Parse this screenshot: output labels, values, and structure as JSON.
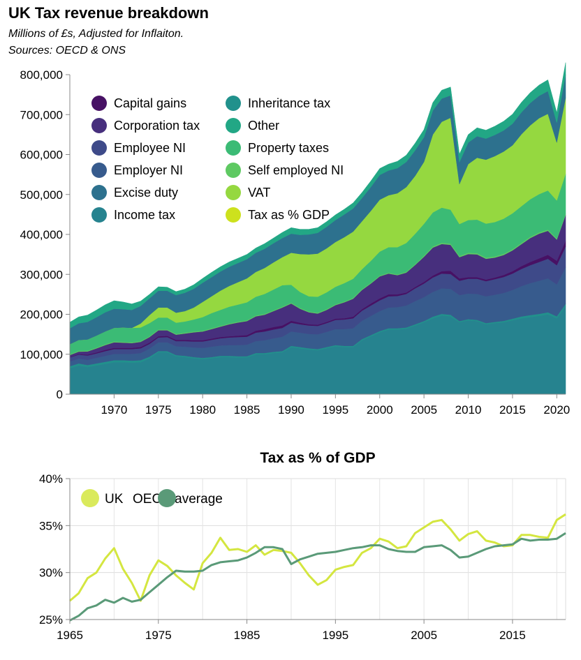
{
  "header": {
    "title": "UK Tax revenue breakdown",
    "subtitle_1": "Millions of £s, Adjusted for Inflaiton.",
    "subtitle_2": "Sources: OECD & ONS"
  },
  "chart_data": [
    {
      "type": "area",
      "stacked": true,
      "title": "UK Tax revenue breakdown",
      "ylim": [
        0,
        800000
      ],
      "xlim": [
        1965,
        2021
      ],
      "y_ticks": [
        "0",
        "100,000",
        "200,000",
        "300,000",
        "400,000",
        "500,000",
        "600,000",
        "700,000",
        "800,000"
      ],
      "y_tick_values": [
        0,
        100000,
        200000,
        300000,
        400000,
        500000,
        600000,
        700000,
        800000
      ],
      "x_ticks": [
        "1970",
        "1975",
        "1980",
        "1985",
        "1990",
        "1995",
        "2000",
        "2005",
        "2010",
        "2015",
        "2020"
      ],
      "x_tick_values": [
        1970,
        1975,
        1980,
        1985,
        1990,
        1995,
        2000,
        2005,
        2010,
        2015,
        2020
      ],
      "grid": false,
      "legend_position": "top-left",
      "legend": [
        "Capital gains",
        "Corporation tax",
        "Employee NI",
        "Employer NI",
        "Excise duty",
        "Income tax",
        "Inheritance tax",
        "Other",
        "Property taxes",
        "Self employed NI",
        "VAT",
        "Tax as % GDP"
      ],
      "legend_colors": [
        "#471164",
        "#472f7d",
        "#3e4a89",
        "#375b8d",
        "#2d718e",
        "#26838f",
        "#21918c",
        "#22a785",
        "#3bbb75",
        "#5ec962",
        "#95d840",
        "#cde11d"
      ],
      "years_stack": [
        1965,
        1966,
        1967,
        1968,
        1969,
        1970,
        1971,
        1972,
        1973,
        1974,
        1975,
        1976,
        1977,
        1978,
        1979,
        1980,
        1981,
        1982,
        1983,
        1984,
        1985,
        1986,
        1987,
        1988,
        1989,
        1990,
        1991,
        1992,
        1993,
        1994,
        1995,
        1996,
        1997,
        1998,
        1999,
        2000,
        2001,
        2002,
        2003,
        2004,
        2005,
        2006,
        2007,
        2008,
        2009,
        2010,
        2011,
        2012,
        2013,
        2014,
        2015,
        2016,
        2017,
        2018,
        2019,
        2020,
        2021
      ],
      "series": [
        {
          "name": "Income tax",
          "color": "#26838f",
          "values": [
            65000,
            72000,
            68000,
            72000,
            76000,
            80000,
            80000,
            79000,
            80000,
            90000,
            105000,
            105000,
            95000,
            93000,
            90000,
            88000,
            90000,
            93000,
            93000,
            92000,
            92000,
            100000,
            100000,
            103000,
            105000,
            118000,
            115000,
            112000,
            110000,
            115000,
            120000,
            118000,
            118000,
            135000,
            145000,
            155000,
            162000,
            162000,
            164000,
            172000,
            180000,
            190000,
            197000,
            195000,
            180000,
            185000,
            183000,
            175000,
            178000,
            180000,
            185000,
            190000,
            193000,
            196000,
            200000,
            190000,
            220000
          ]
        },
        {
          "name": "Inheritance tax",
          "color": "#21918c",
          "values": [
            5000,
            5000,
            5000,
            5000,
            5000,
            5000,
            5000,
            5000,
            5000,
            4000,
            3000,
            3000,
            3000,
            3000,
            3000,
            3000,
            3000,
            3000,
            3000,
            3000,
            3000,
            3000,
            3000,
            3000,
            3000,
            3000,
            3000,
            3000,
            3000,
            3000,
            3000,
            3000,
            3000,
            3000,
            3000,
            3000,
            3000,
            3000,
            3000,
            3000,
            3000,
            4000,
            4000,
            4000,
            3000,
            3000,
            3000,
            3000,
            3000,
            3500,
            4000,
            4500,
            5000,
            5000,
            5000,
            5000,
            6000
          ]
        },
        {
          "name": "Employer NI",
          "color": "#375b8d",
          "values": [
            12000,
            12000,
            13000,
            14000,
            15000,
            16000,
            16000,
            17000,
            18000,
            20000,
            22000,
            22000,
            22000,
            23000,
            24000,
            25000,
            26000,
            26000,
            27000,
            28000,
            29000,
            30000,
            32000,
            34000,
            36000,
            36000,
            36000,
            36000,
            37000,
            38000,
            40000,
            42000,
            44000,
            46000,
            48000,
            50000,
            52000,
            53000,
            55000,
            58000,
            60000,
            62000,
            64000,
            65000,
            65000,
            64000,
            65000,
            67000,
            68000,
            70000,
            72000,
            76000,
            80000,
            83000,
            85000,
            80000,
            92000
          ]
        },
        {
          "name": "Employee NI",
          "color": "#3e4a89",
          "values": [
            10000,
            10000,
            11000,
            11000,
            12000,
            12000,
            12000,
            12000,
            12000,
            12000,
            12000,
            13000,
            13000,
            14000,
            15000,
            16000,
            17000,
            18000,
            19000,
            20000,
            20000,
            21000,
            22000,
            22000,
            22000,
            22000,
            21000,
            21000,
            21000,
            22000,
            23000,
            24000,
            25000,
            25000,
            26000,
            27000,
            28000,
            28000,
            29000,
            32000,
            34000,
            36000,
            37000,
            37000,
            36000,
            37000,
            38000,
            38000,
            39000,
            40000,
            41000,
            43000,
            45000,
            47000,
            49000,
            48000,
            52000
          ]
        },
        {
          "name": "Capital gains",
          "color": "#471164",
          "values": [
            1000,
            1500,
            2000,
            2500,
            3000,
            3000,
            3000,
            3000,
            3000,
            3000,
            3000,
            3000,
            3000,
            3000,
            3000,
            3000,
            3000,
            3000,
            3000,
            3500,
            4000,
            5000,
            6000,
            6000,
            6000,
            5000,
            4000,
            3000,
            3000,
            3000,
            3000,
            3000,
            4000,
            4000,
            5000,
            5000,
            5000,
            4000,
            3500,
            3500,
            4000,
            5000,
            6000,
            8000,
            6000,
            4000,
            4000,
            4000,
            4000,
            5000,
            6000,
            7000,
            8000,
            9000,
            10000,
            11000,
            14000
          ]
        },
        {
          "name": "Corporation tax",
          "color": "#472f7d",
          "values": [
            5000,
            6000,
            8000,
            10000,
            12000,
            14000,
            13000,
            12000,
            13000,
            14000,
            15000,
            14000,
            13000,
            16000,
            20000,
            22000,
            24000,
            26000,
            30000,
            33000,
            35000,
            36000,
            36000,
            40000,
            45000,
            43000,
            35000,
            30000,
            28000,
            30000,
            34000,
            40000,
            45000,
            48000,
            50000,
            55000,
            52000,
            48000,
            50000,
            55000,
            63000,
            70000,
            68000,
            65000,
            53000,
            58000,
            57000,
            52000,
            50000,
            50000,
            52000,
            55000,
            60000,
            62000,
            60000,
            53000,
            65000
          ]
        },
        {
          "name": "Self employed NI",
          "color": "#5ec962",
          "values": [
            2000,
            2000,
            2000,
            2000,
            2000,
            2000,
            2000,
            2000,
            2000,
            2000,
            2000,
            2000,
            2000,
            2000,
            2000,
            2000,
            2000,
            2000,
            2000,
            2000,
            2000,
            2000,
            2000,
            2000,
            2000,
            2000,
            2000,
            2000,
            2000,
            2000,
            2000,
            2000,
            2000,
            2000,
            2000,
            2000,
            2000,
            2000,
            2000,
            2000,
            2500,
            3000,
            3000,
            3000,
            3000,
            3000,
            3000,
            3000,
            3000,
            3000,
            3000,
            3000,
            3000,
            3000,
            3000,
            3000,
            3000
          ]
        },
        {
          "name": "Property taxes",
          "color": "#3bbb75",
          "values": [
            25000,
            27000,
            28000,
            30000,
            32000,
            34000,
            36000,
            36000,
            34000,
            33000,
            30000,
            30000,
            28000,
            28000,
            30000,
            34000,
            38000,
            40000,
            42000,
            43000,
            45000,
            47000,
            50000,
            52000,
            54000,
            45000,
            40000,
            38000,
            40000,
            42000,
            44000,
            46000,
            48000,
            50000,
            55000,
            60000,
            64000,
            68000,
            72000,
            76000,
            80000,
            85000,
            88000,
            85000,
            80000,
            82000,
            84000,
            85000,
            86000,
            88000,
            90000,
            92000,
            94000,
            96000,
            98000,
            95000,
            100000
          ]
        },
        {
          "name": "VAT",
          "color": "#95d840",
          "values": [
            0,
            0,
            0,
            0,
            0,
            0,
            0,
            0,
            10000,
            20000,
            25000,
            25000,
            25000,
            26000,
            30000,
            38000,
            42000,
            48000,
            52000,
            56000,
            60000,
            62000,
            65000,
            68000,
            70000,
            80000,
            95000,
            105000,
            108000,
            110000,
            112000,
            115000,
            118000,
            120000,
            125000,
            130000,
            130000,
            135000,
            140000,
            145000,
            155000,
            195000,
            215000,
            230000,
            100000,
            140000,
            155000,
            160000,
            165000,
            168000,
            170000,
            180000,
            185000,
            190000,
            192000,
            145000,
            190000
          ]
        },
        {
          "name": "Excise duty",
          "color": "#2d718e",
          "values": [
            40000,
            42000,
            44000,
            46000,
            48000,
            48000,
            46000,
            45000,
            44000,
            42000,
            42000,
            42000,
            44000,
            46000,
            47000,
            48000,
            48000,
            48000,
            48000,
            48000,
            48000,
            48000,
            48000,
            48000,
            48000,
            48000,
            48000,
            50000,
            52000,
            54000,
            55000,
            57000,
            58000,
            58000,
            60000,
            62000,
            62000,
            63000,
            63000,
            64000,
            62000,
            60000,
            58000,
            56000,
            55000,
            54000,
            54000,
            53000,
            53000,
            53000,
            54000,
            55000,
            56000,
            56000,
            57000,
            50000,
            58000
          ]
        },
        {
          "name": "Other",
          "color": "#22a785",
          "values": [
            15000,
            16000,
            17000,
            18000,
            19000,
            20000,
            18000,
            15000,
            12000,
            10000,
            10000,
            9000,
            9000,
            9000,
            10000,
            11000,
            12000,
            12000,
            12000,
            12000,
            12000,
            12000,
            13000,
            13000,
            14000,
            15000,
            14000,
            13000,
            13000,
            13000,
            13000,
            13000,
            14000,
            14000,
            15000,
            16000,
            16000,
            17000,
            17000,
            18000,
            19000,
            20000,
            21000,
            21000,
            20000,
            20000,
            21000,
            21000,
            22000,
            23000,
            24000,
            25000,
            26000,
            27000,
            28000,
            25000,
            30000
          ]
        }
      ]
    },
    {
      "type": "line",
      "title": "Tax as % of GDP",
      "ylim": [
        25,
        40
      ],
      "xlim": [
        1965,
        2021
      ],
      "y_ticks": [
        "25%",
        "30%",
        "35%",
        "40%"
      ],
      "y_tick_values": [
        25,
        30,
        35,
        40
      ],
      "x_ticks": [
        "1965",
        "1975",
        "1985",
        "1995",
        "2005",
        "2015"
      ],
      "x_tick_values": [
        1965,
        1975,
        1985,
        1995,
        2005,
        2015
      ],
      "grid": true,
      "legend_position": "top-left",
      "x": [
        1965,
        1966,
        1967,
        1968,
        1969,
        1970,
        1971,
        1972,
        1973,
        1974,
        1975,
        1976,
        1977,
        1978,
        1979,
        1980,
        1981,
        1982,
        1983,
        1984,
        1985,
        1986,
        1987,
        1988,
        1989,
        1990,
        1991,
        1992,
        1993,
        1994,
        1995,
        1996,
        1997,
        1998,
        1999,
        2000,
        2001,
        2002,
        2003,
        2004,
        2005,
        2006,
        2007,
        2008,
        2009,
        2010,
        2011,
        2012,
        2013,
        2014,
        2015,
        2016,
        2017,
        2018,
        2019,
        2020,
        2021
      ],
      "series": [
        {
          "name": "UK",
          "color": "#d4e640",
          "values": [
            27.0,
            27.8,
            29.4,
            30.0,
            31.5,
            32.6,
            30.4,
            28.9,
            27.0,
            29.7,
            31.3,
            30.7,
            29.7,
            28.9,
            28.2,
            31.0,
            32.1,
            33.7,
            32.4,
            32.5,
            32.2,
            32.9,
            31.9,
            32.4,
            32.3,
            32.1,
            31.0,
            29.7,
            28.7,
            29.2,
            30.3,
            30.6,
            30.8,
            32.1,
            32.6,
            33.6,
            33.3,
            32.6,
            32.8,
            34.2,
            34.8,
            35.4,
            35.6,
            34.6,
            33.4,
            34.1,
            34.4,
            33.4,
            33.2,
            32.8,
            32.9,
            34.0,
            34.0,
            33.8,
            33.7,
            35.6,
            36.2
          ]
        },
        {
          "name": "OECD average",
          "color": "#5a9a78",
          "values": [
            24.9,
            25.4,
            26.2,
            26.5,
            27.1,
            26.8,
            27.3,
            26.9,
            27.1,
            27.9,
            28.7,
            29.5,
            30.2,
            30.1,
            30.1,
            30.2,
            30.8,
            31.1,
            31.2,
            31.3,
            31.6,
            32.1,
            32.7,
            32.7,
            32.5,
            30.9,
            31.4,
            31.7,
            32.0,
            32.1,
            32.2,
            32.4,
            32.6,
            32.7,
            32.9,
            32.9,
            32.5,
            32.3,
            32.2,
            32.2,
            32.7,
            32.8,
            32.9,
            32.4,
            31.6,
            31.7,
            32.1,
            32.5,
            32.8,
            32.9,
            33.0,
            33.6,
            33.4,
            33.5,
            33.5,
            33.6,
            34.2
          ]
        }
      ],
      "legend": [
        "UK",
        "OECD average"
      ]
    }
  ]
}
